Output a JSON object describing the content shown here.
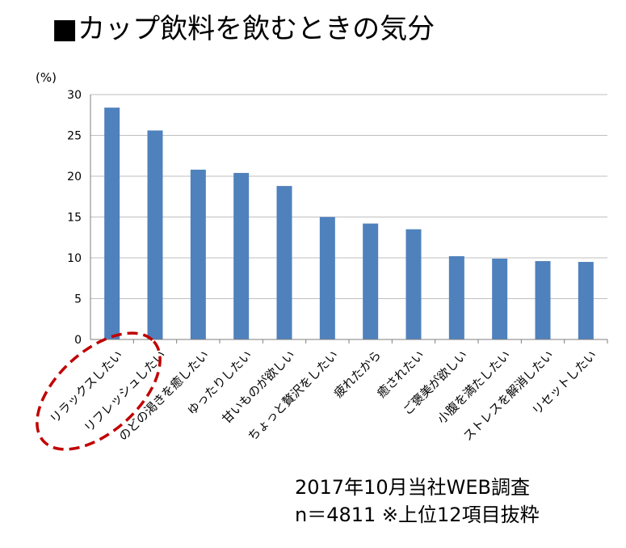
{
  "title": "■カップ飲料を飲むときの気分",
  "notes": {
    "survey": "2017年10月当社WEB調査",
    "sample": "n＝4811 ※上位12項目抜粋"
  },
  "chart_data": {
    "type": "bar",
    "title": "■カップ飲料を飲むときの気分",
    "xlabel": "",
    "ylabel": "(%)",
    "ylim": [
      0,
      30
    ],
    "yticks": [
      0,
      5,
      10,
      15,
      20,
      25,
      30
    ],
    "grid": true,
    "legend": "none",
    "categories": [
      "リラックスしたい",
      "リフレッシュしたい",
      "のどの渇きを癒したい",
      "ゆったりしたい",
      "甘いものが欲しい",
      "ちょっと贅沢をしたい",
      "疲れたから",
      "癒されたい",
      "ご褒美が欲しい",
      "小腹を満たしたい",
      "ストレスを解消したい",
      "リセットしたい"
    ],
    "values": [
      28.4,
      25.6,
      20.8,
      20.4,
      18.8,
      15.0,
      14.2,
      13.5,
      10.2,
      9.9,
      9.6,
      9.5
    ],
    "bar_color": "#4f81bd",
    "highlight_color": "#c00000"
  }
}
